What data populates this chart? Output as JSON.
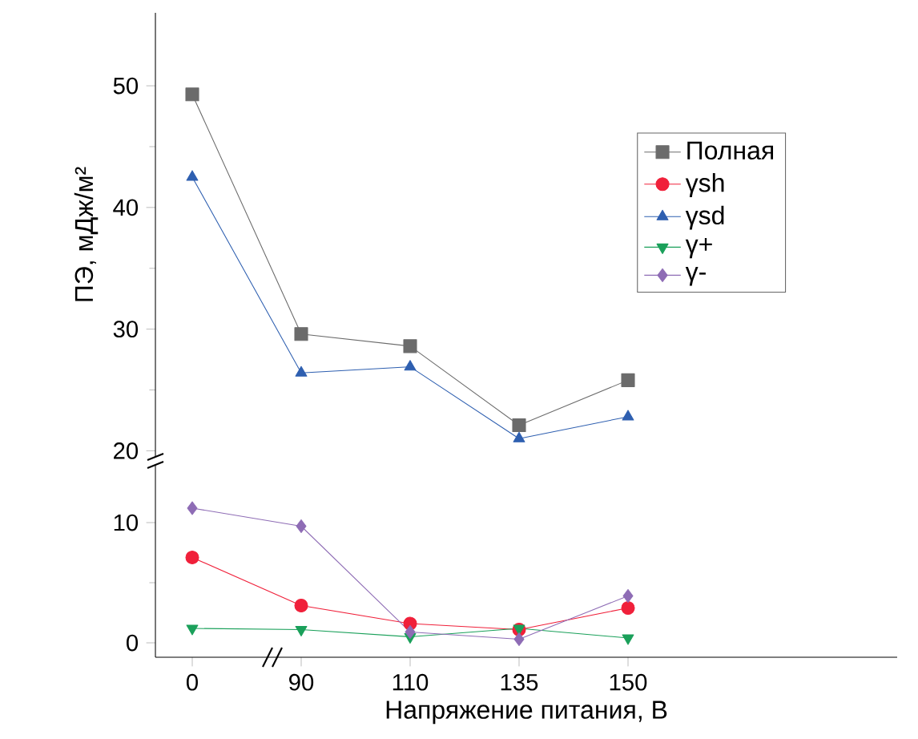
{
  "chart_data": [
    {
      "type": "line",
      "ylabel": "ПЭ, мДж/м²",
      "categories": [
        "0",
        "90",
        "110",
        "135",
        "150"
      ],
      "ylim": [
        19.5,
        56
      ],
      "yticks": [
        20,
        30,
        40,
        50
      ],
      "tick_labels": "y",
      "legend": "right",
      "series": [
        {
          "name": "Полная",
          "color": "#6b6b6b",
          "marker": "square",
          "values": [
            49.3,
            29.6,
            28.6,
            22.1,
            25.8
          ]
        },
        {
          "name": "γsh",
          "color": "#f0203a",
          "marker": "circle",
          "values": [
            null,
            null,
            null,
            null,
            null
          ]
        },
        {
          "name": "γsd",
          "color": "#2e5fb0",
          "marker": "triangle",
          "values": [
            42.5,
            26.4,
            26.9,
            21.0,
            22.8
          ]
        },
        {
          "name": "γ+",
          "color": "#1aa05a",
          "marker": "triangle-down",
          "values": [
            null,
            null,
            null,
            null,
            null
          ]
        },
        {
          "name": "γ-",
          "color": "#8e6cb5",
          "marker": "diamond",
          "values": [
            null,
            null,
            null,
            null,
            null
          ]
        }
      ]
    },
    {
      "type": "line",
      "xlabel": "Напряжение питания, В",
      "categories": [
        "0",
        "90",
        "110",
        "135",
        "150"
      ],
      "ylim": [
        -1.2,
        14.8
      ],
      "yticks": [
        0,
        10
      ],
      "series": [
        {
          "color": "#f0203a",
          "marker": "circle",
          "values": [
            7.1,
            3.1,
            1.6,
            1.1,
            2.9
          ]
        },
        {
          "color": "#1aa05a",
          "marker": "triangle-down",
          "values": [
            1.2,
            1.1,
            0.5,
            1.2,
            0.4
          ]
        },
        {
          "color": "#8e6cb5",
          "marker": "diamond",
          "values": [
            11.2,
            9.7,
            0.9,
            0.3,
            3.9
          ]
        }
      ]
    }
  ]
}
